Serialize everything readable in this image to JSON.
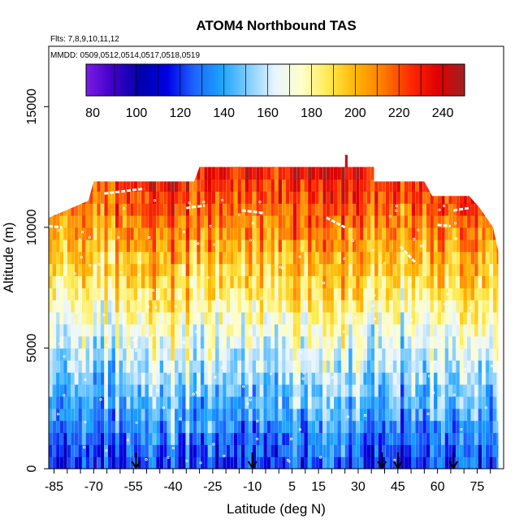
{
  "chart_data": {
    "type": "heatmap",
    "title": "ATOM4 Northbound TAS",
    "flights_label": "Flts: 7,8,9,10,11,12",
    "dates_label": "MMDD: 0509,0512,0514,0517,0518,0519",
    "xlabel": "Latitude (deg N)",
    "ylabel": "Altitude (m)",
    "xlim": [
      -87,
      85
    ],
    "ylim": [
      0,
      17500
    ],
    "x_ticks": [
      -85,
      -70,
      -55,
      -40,
      -25,
      -10,
      5,
      15,
      30,
      45,
      60,
      75
    ],
    "x_tick_labels": [
      "-85",
      "-70",
      "-55",
      "-40",
      "-25",
      "-10",
      "5",
      "15",
      "30",
      "45",
      "60",
      "75"
    ],
    "y_ticks": [
      0,
      5000,
      10000,
      15000
    ],
    "y_tick_labels": [
      "0",
      "5000",
      "10000",
      "15000"
    ],
    "colorbar": {
      "range": [
        77,
        250
      ],
      "ticks": [
        80,
        100,
        120,
        140,
        160,
        180,
        200,
        220,
        240
      ],
      "tick_labels": [
        "80",
        "100",
        "120",
        "140",
        "160",
        "180",
        "200",
        "220",
        "240"
      ],
      "colors": [
        "#7b1be6",
        "#3f00c8",
        "#0000aa",
        "#0000e6",
        "#1e64ff",
        "#1aa3ff",
        "#82cdff",
        "#e9f5ff",
        "#ffffc8",
        "#ffe94a",
        "#ffb300",
        "#ff7a00",
        "#ff2a00",
        "#e00000",
        "#a02020"
      ]
    },
    "ceiling_profile": [
      {
        "lat": -87,
        "alt": 10400
      },
      {
        "lat": -72,
        "alt": 11100
      },
      {
        "lat": -70,
        "alt": 11900
      },
      {
        "lat": -50,
        "alt": 11900
      },
      {
        "lat": -32,
        "alt": 11900
      },
      {
        "lat": -30,
        "alt": 12500
      },
      {
        "lat": 25,
        "alt": 12500
      },
      {
        "lat": 25,
        "alt": 13000
      },
      {
        "lat": 26,
        "alt": 13000
      },
      {
        "lat": 26,
        "alt": 12500
      },
      {
        "lat": 36,
        "alt": 12500
      },
      {
        "lat": 36,
        "alt": 11900
      },
      {
        "lat": 55,
        "alt": 11900
      },
      {
        "lat": 58,
        "alt": 11300
      },
      {
        "lat": 72,
        "alt": 11300
      },
      {
        "lat": 76,
        "alt": 10800
      },
      {
        "lat": 81,
        "alt": 10000
      },
      {
        "lat": 83,
        "alt": 9000
      }
    ],
    "arrows_lat": [
      -54,
      -10,
      39,
      45,
      66
    ]
  }
}
